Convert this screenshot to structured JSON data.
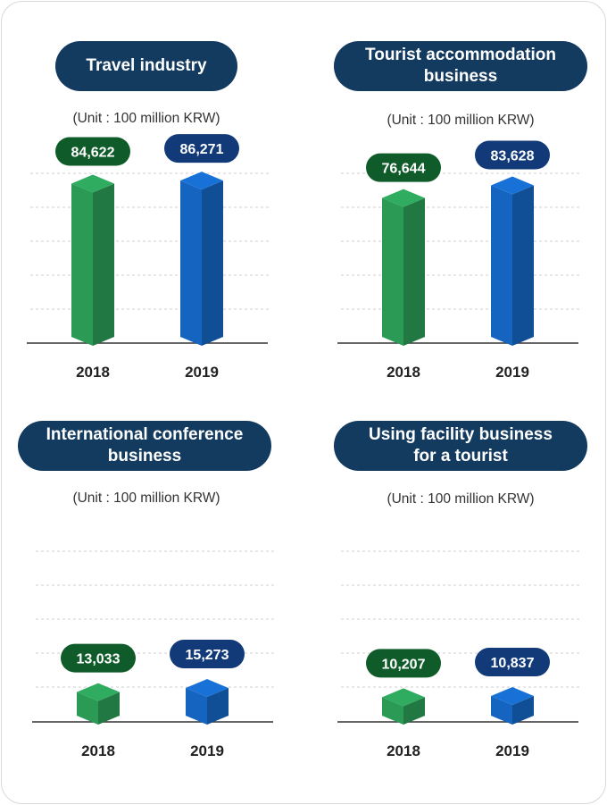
{
  "chart_data": [
    {
      "type": "bar",
      "title": "Travel industry",
      "unit": "(Unit : 100 million KRW)",
      "categories": [
        "2018",
        "2019"
      ],
      "values": [
        84622,
        86271
      ],
      "value_labels": [
        "84,622",
        "86,271"
      ],
      "ylim": [
        0,
        90000
      ]
    },
    {
      "type": "bar",
      "title": "Tourist accommodation business",
      "unit": "(Unit : 100 million KRW)",
      "categories": [
        "2018",
        "2019"
      ],
      "values": [
        76644,
        83628
      ],
      "value_labels": [
        "76,644",
        "83,628"
      ],
      "ylim": [
        0,
        90000
      ]
    },
    {
      "type": "bar",
      "title": "International conference business",
      "unit": "(Unit : 100 million KRW)",
      "categories": [
        "2018",
        "2019"
      ],
      "values": [
        13033,
        15273
      ],
      "value_labels": [
        "13,033",
        "15,273"
      ],
      "ylim": [
        0,
        90000
      ]
    },
    {
      "type": "bar",
      "title": "Using facility business for a tourist",
      "unit": "(Unit : 100 million KRW)",
      "categories": [
        "2018",
        "2019"
      ],
      "values": [
        10207,
        10837
      ],
      "value_labels": [
        "10,207",
        "10,837"
      ],
      "ylim": [
        0,
        90000
      ]
    }
  ],
  "colors": {
    "year_2018": "#2a9a55",
    "year_2018_badge": "#0f5c2a",
    "year_2019": "#1565c0",
    "year_2019_badge": "#123a78",
    "title_pill": "#133a5f"
  },
  "titles": {
    "travel_line1": "Travel industry",
    "accommodation_line1": "Tourist accommodation",
    "accommodation_line2": "business",
    "conference_line1": "International conference",
    "conference_line2": "business",
    "facility_line1": "Using facility business",
    "facility_line2": "for a tourist"
  }
}
